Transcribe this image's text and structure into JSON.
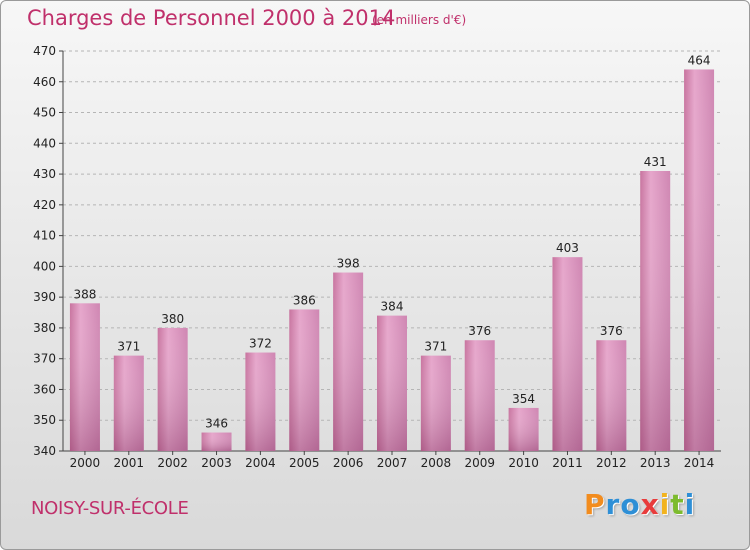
{
  "chart_data": {
    "type": "bar",
    "title": "Charges de Personnel 2000 à 2014",
    "subtitle": "(en milliers d'€)",
    "categories": [
      "2000",
      "2001",
      "2002",
      "2003",
      "2004",
      "2005",
      "2006",
      "2007",
      "2008",
      "2009",
      "2010",
      "2011",
      "2012",
      "2013",
      "2014"
    ],
    "values": [
      388,
      371,
      380,
      346,
      372,
      386,
      398,
      384,
      371,
      376,
      354,
      403,
      376,
      431,
      464
    ],
    "ylim": [
      340,
      470
    ],
    "yticks": [
      340,
      350,
      360,
      370,
      380,
      390,
      400,
      410,
      420,
      430,
      440,
      450,
      460,
      470
    ],
    "grid": true,
    "bar_color": "#d98fb8",
    "title_color": "#c0306b"
  },
  "commune": "NOISY-SUR-ÉCOLE",
  "logo": {
    "letters": [
      "P",
      "r",
      "o",
      "x",
      "i",
      "t",
      "i"
    ],
    "colors": [
      "#f28c1e",
      "#2e8fd6",
      "#2e8fd6",
      "#e83c3c",
      "#f2b31e",
      "#7dbb2e",
      "#2e8fd6"
    ]
  }
}
